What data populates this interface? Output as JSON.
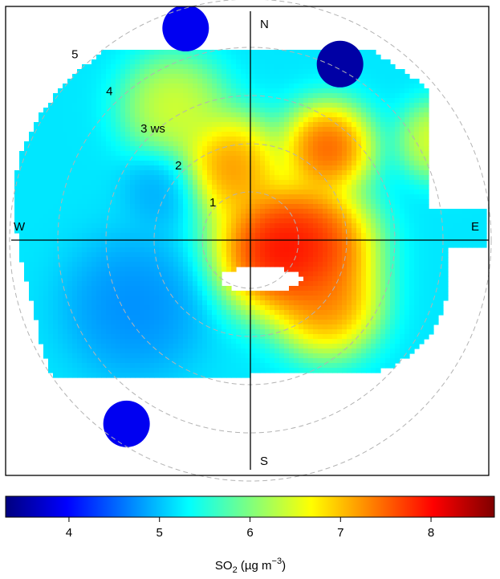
{
  "chart_data": {
    "type": "heatmap",
    "subtype": "polar-plot",
    "compass": {
      "north": "N",
      "south": "S",
      "east": "E",
      "west": "W"
    },
    "radial_axis": {
      "unit_label": "ws",
      "ticks": [
        {
          "value": 1,
          "label": "1"
        },
        {
          "value": 2,
          "label": "2"
        },
        {
          "value": 3,
          "label": "3 ws"
        },
        {
          "value": 4,
          "label": "4"
        },
        {
          "value": 5,
          "label": "5"
        }
      ]
    },
    "colorbar": {
      "label_main": "SO",
      "label_sub": "2",
      "label_rest": " (µg m",
      "label_sup": "−3",
      "label_end": ")",
      "range": [
        3.3,
        8.7
      ],
      "ticks": [
        "4",
        "5",
        "6",
        "7",
        "8"
      ],
      "tick_values": [
        4,
        5,
        6,
        7,
        8
      ],
      "colors": [
        "#00007f",
        "#0000ff",
        "#007fff",
        "#00ffff",
        "#7fff7f",
        "#ffff00",
        "#ff7f00",
        "#ff0000",
        "#7f0000"
      ]
    },
    "hotspots": [
      {
        "dir_deg": 110,
        "ws": 0.6,
        "value": 8.7,
        "spread": 1.0
      },
      {
        "dir_deg": 95,
        "ws": 1.4,
        "value": 8.2,
        "spread": 0.9
      },
      {
        "dir_deg": 40,
        "ws": 2.5,
        "value": 8.2,
        "spread": 0.7
      },
      {
        "dir_deg": 130,
        "ws": 2.1,
        "value": 7.8,
        "spread": 0.8
      },
      {
        "dir_deg": 345,
        "ws": 1.6,
        "value": 7.8,
        "spread": 0.8
      },
      {
        "dir_deg": 330,
        "ws": 3.2,
        "value": 6.8,
        "spread": 0.8
      },
      {
        "dir_deg": 62,
        "ws": 4.4,
        "value": 6.9,
        "spread": 0.6
      },
      {
        "dir_deg": 240,
        "ws": 2.8,
        "value": 4.6,
        "spread": 1.1
      },
      {
        "dir_deg": 300,
        "ws": 2.1,
        "value": 4.8,
        "spread": 0.6
      }
    ],
    "background_value": 5.2,
    "outliers": [
      {
        "dir_deg": 343,
        "ws": 4.6,
        "value": 3.9
      },
      {
        "dir_deg": 27,
        "ws": 4.1,
        "value": 3.5
      },
      {
        "dir_deg": 214,
        "ws": 4.6,
        "value": 3.9
      }
    ]
  }
}
